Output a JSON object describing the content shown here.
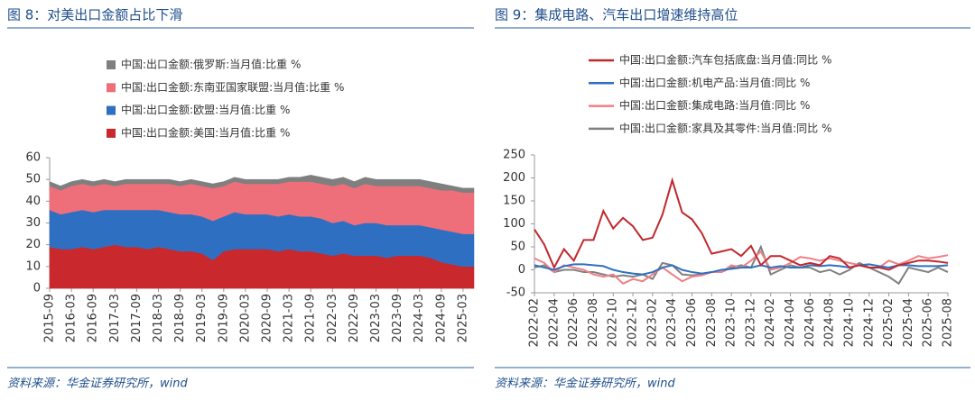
{
  "chart_data": [
    {
      "type": "area",
      "stacked": true,
      "title": "图 8：对美出口金额占比下滑",
      "source": "资料来源：华金证券研究所，wind",
      "categories": [
        "2015-09",
        null,
        "2016-03",
        null,
        "2016-09",
        null,
        "2017-03",
        null,
        "2017-09",
        null,
        "2018-03",
        null,
        "2018-09",
        null,
        "2019-03",
        null,
        "2019-09",
        null,
        "2020-03",
        null,
        "2020-09",
        null,
        "2021-03",
        null,
        "2021-09",
        null,
        "2022-03",
        null,
        "2022-09",
        null,
        "2023-03",
        null,
        "2023-09",
        null,
        "2024-03",
        null,
        "2024-09",
        null,
        "2025-03",
        null
      ],
      "series": [
        {
          "name": "中国:出口金额:美国:当月值:比重 %",
          "color": "#c9282d",
          "values": [
            19,
            18,
            18,
            19,
            18,
            19,
            20,
            19,
            19,
            18,
            19,
            18,
            17,
            17,
            16,
            13,
            17,
            18,
            18,
            18,
            18,
            17,
            18,
            17,
            17,
            16,
            15,
            16,
            15,
            15,
            15,
            14,
            15,
            15,
            15,
            14,
            12,
            11,
            10,
            10
          ]
        },
        {
          "name": "中国:出口金额:欧盟:当月值:比重 %",
          "color": "#2f6fc2",
          "values": [
            17,
            16,
            17,
            17,
            17,
            17,
            16,
            17,
            17,
            18,
            17,
            17,
            17,
            17,
            17,
            18,
            16,
            17,
            16,
            16,
            16,
            16,
            16,
            16,
            16,
            16,
            15,
            15,
            14,
            15,
            15,
            15,
            14,
            14,
            14,
            14,
            15,
            15,
            15,
            15
          ]
        },
        {
          "name": "中国:出口金额:东南亚国家联盟:当月值:比重 %",
          "color": "#ee6f7a",
          "values": [
            11,
            11,
            12,
            12,
            12,
            12,
            11,
            12,
            12,
            12,
            12,
            13,
            13,
            14,
            14,
            15,
            14,
            14,
            14,
            14,
            14,
            15,
            15,
            16,
            16,
            16,
            17,
            17,
            17,
            18,
            17,
            18,
            18,
            18,
            18,
            18,
            18,
            19,
            19,
            19
          ]
        },
        {
          "name": "中国:出口金额:俄罗斯:当月值:比重 %",
          "color": "#7f7f7f",
          "values": [
            2,
            2,
            2,
            2,
            2,
            2,
            2,
            2,
            2,
            2,
            2,
            2,
            2,
            2,
            2,
            2,
            2,
            2,
            2,
            2,
            2,
            2,
            2,
            2,
            3,
            3,
            3,
            3,
            3,
            3,
            3,
            3,
            3,
            3,
            3,
            3,
            3,
            2,
            2,
            2
          ]
        }
      ],
      "ylim": [
        0,
        60
      ],
      "yticks": [
        0,
        10,
        20,
        30,
        40,
        50,
        60
      ],
      "grid": false
    },
    {
      "type": "line",
      "title": "图 9：集成电路、汽车出口增速维持高位",
      "source": "资料来源：华金证券研究所，wind",
      "categories": [
        "2022-02",
        null,
        "2022-04",
        null,
        "2022-06",
        null,
        "2022-08",
        null,
        "2022-10",
        null,
        "2022-12",
        null,
        "2023-02",
        null,
        "2023-04",
        null,
        "2023-06",
        null,
        "2023-08",
        null,
        "2023-10",
        null,
        "2023-12",
        null,
        "2024-02",
        null,
        "2024-04",
        null,
        "2024-06",
        null,
        "2024-08",
        null,
        "2024-10",
        null,
        "2024-12",
        null,
        "2025-02",
        null,
        "2025-04",
        null,
        "2025-06",
        null,
        "2025-08"
      ],
      "series": [
        {
          "name": "中国:出口金额:汽车包括底盘:当月值:同比 %",
          "color": "#c0282d",
          "values": [
            88,
            55,
            5,
            45,
            20,
            65,
            65,
            128,
            90,
            113,
            95,
            65,
            70,
            120,
            195,
            125,
            110,
            80,
            35,
            40,
            45,
            30,
            52,
            10,
            30,
            30,
            20,
            10,
            15,
            10,
            30,
            25,
            5,
            10,
            5,
            5,
            0,
            10,
            15,
            20,
            20,
            18,
            15
          ]
        },
        {
          "name": "中国:出口金额:机电产品:当月值:同比 %",
          "color": "#2e70c0",
          "values": [
            10,
            5,
            0,
            8,
            12,
            12,
            10,
            8,
            0,
            -5,
            -8,
            -10,
            -5,
            5,
            10,
            0,
            -5,
            -8,
            -5,
            0,
            2,
            5,
            5,
            10,
            5,
            8,
            5,
            5,
            10,
            8,
            10,
            8,
            5,
            10,
            12,
            8,
            5,
            10,
            10,
            8,
            8,
            8,
            10
          ]
        },
        {
          "name": "中国:出口金额:集成电路:当月值:同比 %",
          "color": "#f07f86",
          "values": [
            25,
            15,
            -5,
            10,
            5,
            0,
            -10,
            -15,
            -10,
            -30,
            -20,
            -25,
            -10,
            5,
            -10,
            -25,
            -15,
            -12,
            -5,
            -5,
            10,
            5,
            20,
            40,
            0,
            5,
            15,
            28,
            25,
            20,
            25,
            20,
            15,
            10,
            5,
            5,
            20,
            12,
            20,
            30,
            25,
            28,
            32
          ]
        },
        {
          "name": "中国:出口金额:家具及其零件:当月值:同比 %",
          "color": "#808080",
          "values": [
            5,
            10,
            -5,
            0,
            0,
            -5,
            -5,
            -10,
            -15,
            -12,
            -15,
            -10,
            -20,
            15,
            10,
            -10,
            -12,
            -10,
            -5,
            -5,
            5,
            10,
            5,
            50,
            -10,
            0,
            10,
            5,
            5,
            -5,
            0,
            -10,
            0,
            15,
            5,
            -5,
            -15,
            -30,
            5,
            0,
            -5,
            5,
            -5
          ]
        }
      ],
      "ylim": [
        -50,
        250
      ],
      "yticks": [
        -50,
        0,
        50,
        100,
        150,
        200,
        250
      ],
      "grid": false
    }
  ]
}
